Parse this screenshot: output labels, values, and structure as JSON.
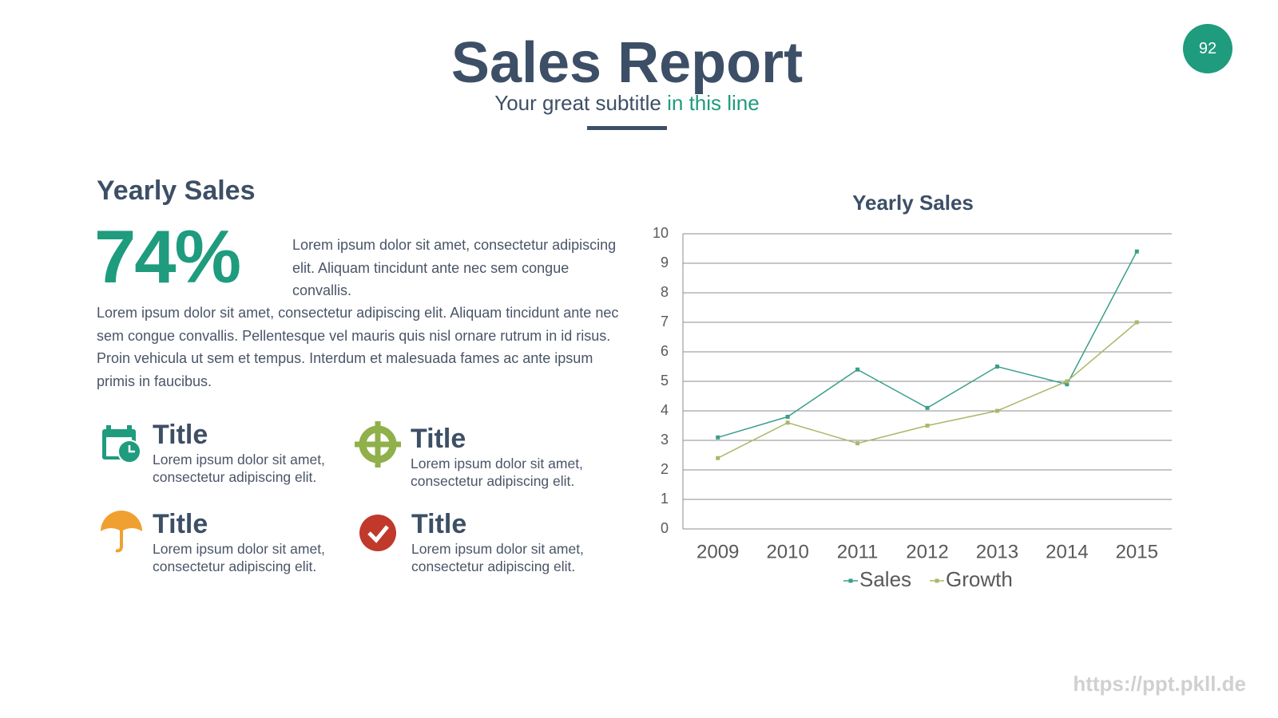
{
  "header": {
    "title": "Sales Report",
    "subtitle": [
      "Your great subtitle",
      "in this line"
    ],
    "page_number": "92"
  },
  "summary": {
    "heading": "Yearly Sales",
    "percent": "74%",
    "intro": "Lorem ipsum dolor sit amet, consectetur adipiscing elit. Aliquam tincidunt ante nec sem congue convallis.",
    "body": "Lorem ipsum dolor sit amet, consectetur adipiscing elit. Aliquam tincidunt ante nec sem congue convallis. Pellentesque vel mauris quis nisl ornare rutrum in id risus. Proin vehicula ut sem et tempus. Interdum et malesuada fames ac ante ipsum primis in faucibus."
  },
  "items": [
    {
      "title": "Title",
      "text": "Lorem ipsum dolor sit amet, consectetur adipiscing elit."
    },
    {
      "title": "Title",
      "text": "Lorem ipsum dolor sit amet, consectetur adipiscing elit."
    },
    {
      "title": "Title",
      "text": "Lorem ipsum dolor sit amet, consectetur adipiscing elit."
    },
    {
      "title": "Title",
      "text": "Lorem ipsum dolor sit amet, consectetur adipiscing elit."
    }
  ],
  "watermark": "https://ppt.pkll.de",
  "chart_data": {
    "type": "line",
    "title": "Yearly Sales",
    "categories": [
      "2009",
      "2010",
      "2011",
      "2012",
      "2013",
      "2014",
      "2015"
    ],
    "series": [
      {
        "name": "Sales",
        "color": "#3a9e8a",
        "values": [
          3.1,
          3.8,
          5.4,
          4.1,
          5.5,
          4.9,
          9.4
        ]
      },
      {
        "name": "Growth",
        "color": "#a9b86a",
        "values": [
          2.4,
          3.6,
          2.9,
          3.5,
          4.0,
          5.0,
          7.0
        ]
      }
    ],
    "ylim": [
      0,
      10
    ],
    "yticks": [
      0,
      1,
      2,
      3,
      4,
      5,
      6,
      7,
      8,
      9,
      10
    ],
    "grid": true,
    "legend": "bottom"
  }
}
